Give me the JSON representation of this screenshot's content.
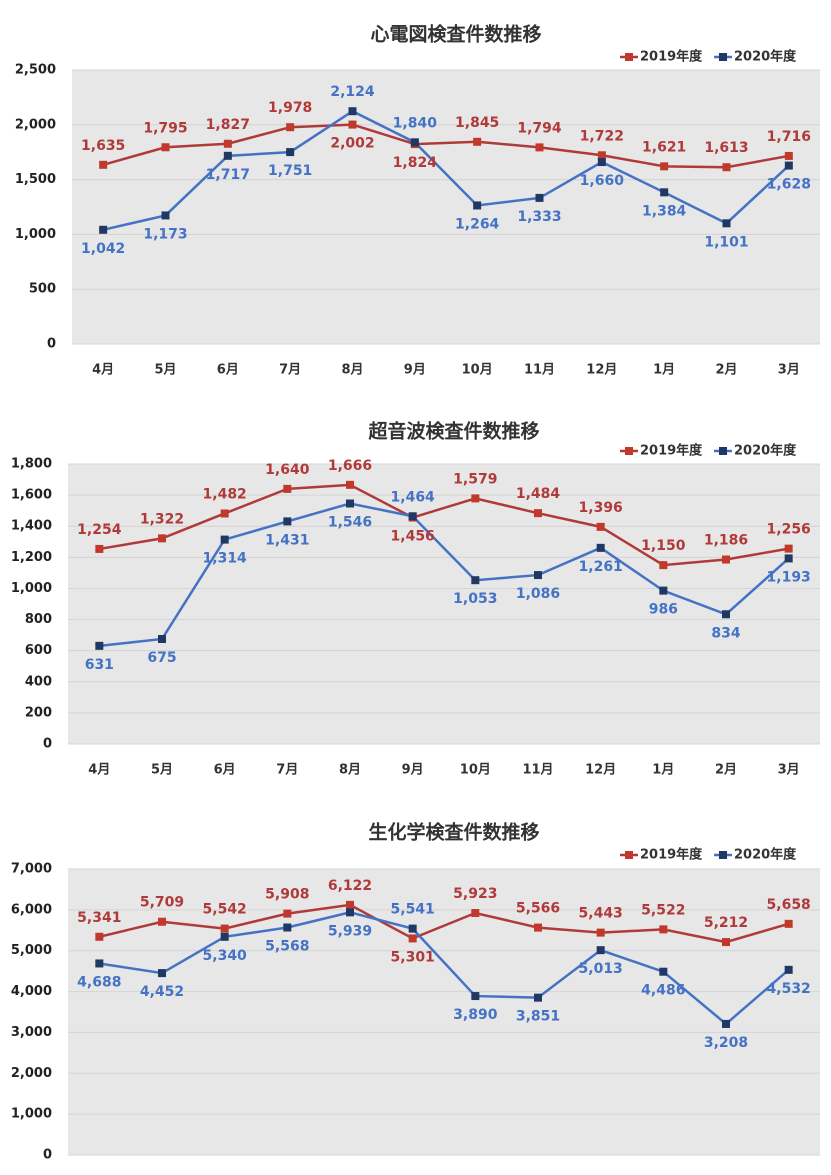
{
  "chart_data": [
    {
      "type": "line",
      "title": "心電図検査件数推移",
      "categories": [
        "4月",
        "5月",
        "6月",
        "7月",
        "8月",
        "9月",
        "10月",
        "11月",
        "12月",
        "1月",
        "2月",
        "3月"
      ],
      "series": [
        {
          "name": "2019年度",
          "color": "#b03a3a",
          "marker_color": "#c0392b",
          "values": [
            1635,
            1795,
            1827,
            1978,
            2002,
            1824,
            1845,
            1794,
            1722,
            1621,
            1613,
            1716
          ],
          "value_labels": [
            "1,635",
            "1,795",
            "1,827",
            "1,978",
            "2,002",
            "1,824",
            "1,845",
            "1,794",
            "1,722",
            "1,621",
            "1,613",
            "1,716"
          ]
        },
        {
          "name": "2020年度",
          "color": "#4472c4",
          "marker_color": "#1f3864",
          "values": [
            1042,
            1173,
            1717,
            1751,
            2124,
            1840,
            1264,
            1333,
            1660,
            1384,
            1101,
            1628
          ],
          "value_labels": [
            "1,042",
            "1,173",
            "1,717",
            "1,751",
            "2,124",
            "1,840",
            "1,264",
            "1,333",
            "1,660",
            "1,384",
            "1,101",
            "1,628"
          ]
        }
      ],
      "ylim": [
        0,
        2500
      ],
      "yticks": [
        0,
        500,
        {
          "value": 1000,
          "label": "1,000"
        },
        {
          "value": 1500,
          "label": "1,500"
        },
        {
          "value": 2000,
          "label": "2,000"
        },
        {
          "value": 2500,
          "label": "2,500"
        }
      ],
      "grid": true,
      "legend": "top-right"
    },
    {
      "type": "line",
      "title": "超音波検査件数推移",
      "categories": [
        "4月",
        "5月",
        "6月",
        "7月",
        "8月",
        "9月",
        "10月",
        "11月",
        "12月",
        "1月",
        "2月",
        "3月"
      ],
      "series": [
        {
          "name": "2019年度",
          "color": "#b03a3a",
          "marker_color": "#c0392b",
          "values": [
            1254,
            1322,
            1482,
            1640,
            1666,
            1456,
            1579,
            1484,
            1396,
            1150,
            1186,
            1256
          ],
          "value_labels": [
            "1,254",
            "1,322",
            "1,482",
            "1,640",
            "1,666",
            "1,456",
            "1,579",
            "1,484",
            "1,396",
            "1,150",
            "1,186",
            "1,256"
          ]
        },
        {
          "name": "2020年度",
          "color": "#4472c4",
          "marker_color": "#1f3864",
          "values": [
            631,
            675,
            1314,
            1431,
            1546,
            1464,
            1053,
            1086,
            1261,
            986,
            834,
            1193
          ],
          "value_labels": [
            "631",
            "675",
            "1,314",
            "1,431",
            "1,546",
            "1,464",
            "1,053",
            "1,086",
            "1,261",
            "986",
            "834",
            "1,193"
          ]
        }
      ],
      "ylim": [
        0,
        1800
      ],
      "yticks": [
        0,
        200,
        400,
        600,
        800,
        {
          "value": 1000,
          "label": "1,000"
        },
        {
          "value": 1200,
          "label": "1,200"
        },
        {
          "value": 1400,
          "label": "1,400"
        },
        {
          "value": 1600,
          "label": "1,600"
        },
        {
          "value": 1800,
          "label": "1,800"
        }
      ],
      "grid": true,
      "legend": "top-right"
    },
    {
      "type": "line",
      "title": "生化学検査件数推移",
      "series": [
        {
          "name": "2019年度",
          "color": "#b03a3a",
          "marker_color": "#c0392b",
          "values": [
            5341,
            5709,
            5542,
            5908,
            6122,
            5301,
            5923,
            5566,
            5443,
            5522,
            5212,
            5658
          ],
          "value_labels": [
            "5,341",
            "5,709",
            "5,542",
            "5,908",
            "6,122",
            "5,301",
            "5,923",
            "5,566",
            "5,443",
            "5,522",
            "5,212",
            "5,658"
          ]
        },
        {
          "name": "2020年度",
          "color": "#4472c4",
          "marker_color": "#1f3864",
          "values": [
            4688,
            4452,
            5340,
            5568,
            5939,
            5541,
            3890,
            3851,
            5013,
            4486,
            3208,
            4532
          ],
          "value_labels": [
            "4,688",
            "4,452",
            "5,340",
            "5,568",
            "5,939",
            "5,541",
            "3,890",
            "3,851",
            "5,013",
            "4,486",
            "3,208",
            "4,532"
          ]
        }
      ],
      "ylim": [
        0,
        7000
      ],
      "yticks": [
        0,
        {
          "value": 1000,
          "label": "1,000"
        },
        {
          "value": 2000,
          "label": "2,000"
        },
        {
          "value": 3000,
          "label": "3,000"
        },
        {
          "value": 4000,
          "label": "4,000"
        },
        {
          "value": 5000,
          "label": "5,000"
        },
        {
          "value": 6000,
          "label": "6,000"
        },
        {
          "value": 7000,
          "label": "7,000"
        }
      ],
      "grid": true,
      "legend": "top-right"
    }
  ]
}
